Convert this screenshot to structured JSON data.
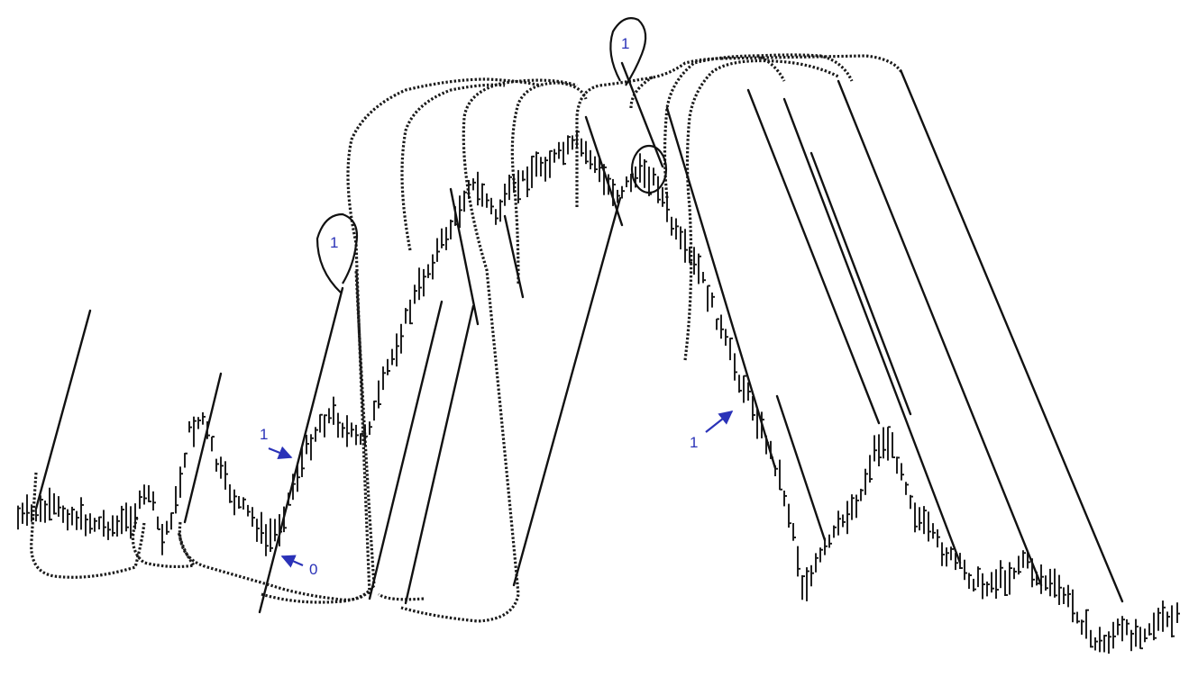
{
  "colors": {
    "ink": "#111111",
    "annotation": "#2a32b8",
    "background": "#ffffff"
  },
  "annotations": {
    "zero_label": "0",
    "one_label_left_arrow": "1",
    "one_label_right_arrow": "1",
    "one_bubble_top": "1",
    "one_bubble_left": "1"
  }
}
